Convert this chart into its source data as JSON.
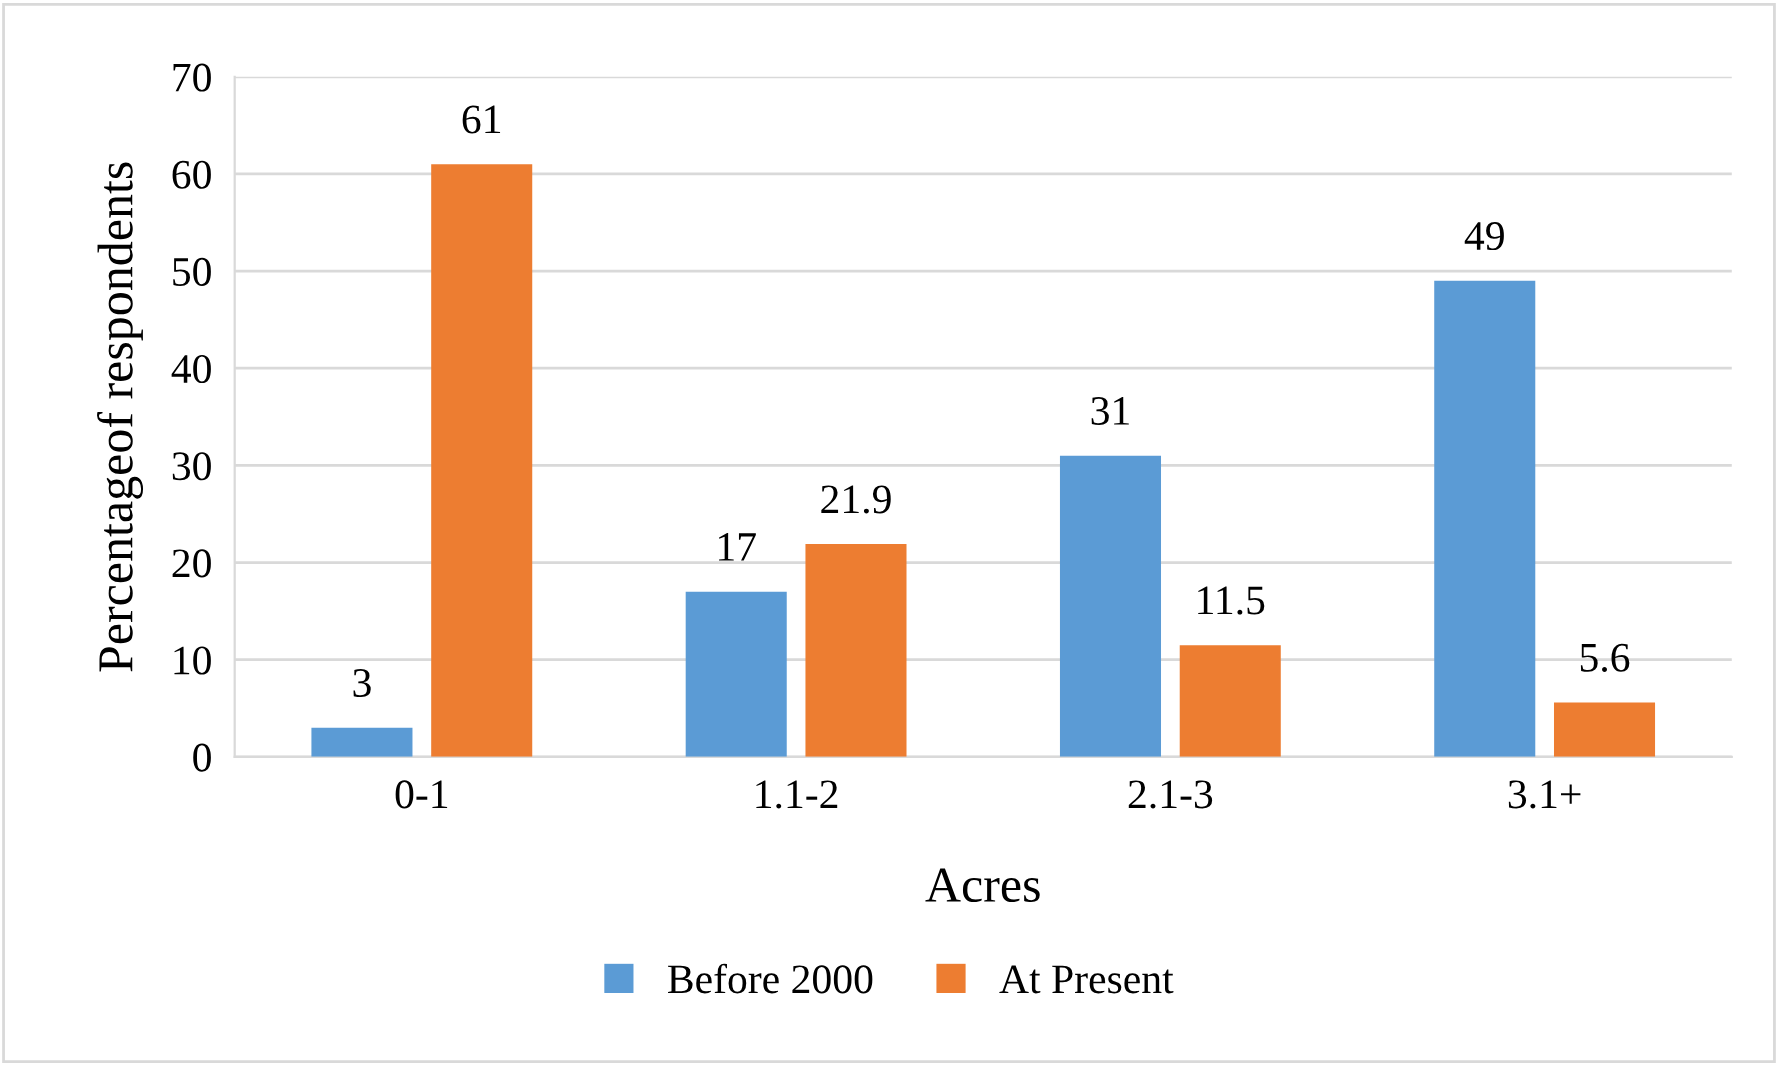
{
  "chart_data": {
    "type": "bar",
    "xlabel": "Acres",
    "ylabel": "Percentageof respondents",
    "categories": [
      "0-1",
      "1.1-2",
      "2.1-3",
      "3.1+"
    ],
    "series": [
      {
        "name": "Before 2000",
        "color": "#5b9bd5",
        "values": [
          3,
          17,
          31,
          49
        ]
      },
      {
        "name": "At Present",
        "color": "#ed7d31",
        "values": [
          61,
          21.9,
          11.5,
          5.6
        ]
      }
    ],
    "ylim": [
      0,
      70
    ],
    "yticks": [
      0,
      10,
      20,
      30,
      40,
      50,
      60,
      70
    ],
    "grid": "y",
    "legend": "bottom",
    "data_labels": true
  }
}
